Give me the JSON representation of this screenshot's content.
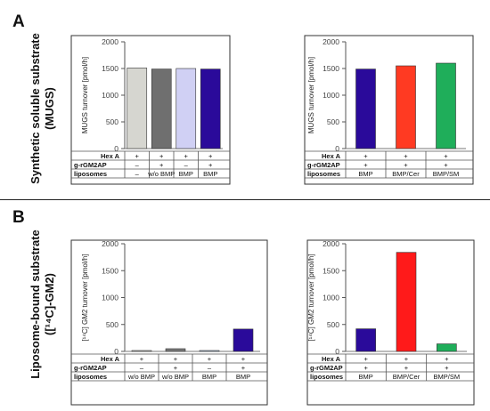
{
  "panels": {
    "a": {
      "letter": "A",
      "side_label_line1": "Synthetic soluble substrate",
      "side_label_line2": "(MUGS)"
    },
    "b": {
      "letter": "B",
      "side_label_line1": "Liposome-bound substrate",
      "side_label_line2": "([¹⁴C]-GM2)"
    }
  },
  "chart_data": [
    {
      "type": "bar",
      "ylabel": "MUGS turnover [pmol/h]",
      "ylim": [
        0,
        2000
      ],
      "yticks": [
        0,
        500,
        1000,
        1500,
        2000
      ],
      "bar_colors": [
        "#d6d6d0",
        "#6f6f6f",
        "#d0d0f4",
        "#2a0a9a"
      ],
      "values": [
        1510,
        1490,
        1500,
        1490
      ],
      "table": {
        "row_labels": [
          "Hex A",
          "g-rGM2AP",
          "liposomes"
        ],
        "rows": [
          [
            "+",
            "+",
            "+",
            "+"
          ],
          [
            "–",
            "+",
            "–",
            "+"
          ],
          [
            "–",
            "w/o BMP",
            "BMP",
            "BMP"
          ]
        ]
      }
    },
    {
      "type": "bar",
      "ylabel": "MUGS turnover [pmol/h]",
      "ylim": [
        0,
        2000
      ],
      "yticks": [
        0,
        500,
        1000,
        1500,
        2000
      ],
      "bar_colors": [
        "#2a0a9a",
        "#ff3a22",
        "#1fae5a"
      ],
      "values": [
        1490,
        1550,
        1600
      ],
      "table": {
        "row_labels": [
          "Hex A",
          "g-rGM2AP",
          "liposomes"
        ],
        "rows": [
          [
            "+",
            "+",
            "+"
          ],
          [
            "+",
            "+",
            "+"
          ],
          [
            "BMP",
            "BMP/Cer",
            "BMP/SM"
          ]
        ]
      }
    },
    {
      "type": "bar",
      "ylabel": "[¹⁴C] GM2 turnover [pmol/h]",
      "ylim": [
        0,
        2000
      ],
      "yticks": [
        0,
        500,
        1000,
        1500,
        2000
      ],
      "bar_colors": [
        "#d6d6d0",
        "#7a7a7a",
        "#b9d8f4",
        "#2a0a9a"
      ],
      "values": [
        5,
        50,
        5,
        415
      ],
      "table": {
        "row_labels": [
          "Hex A",
          "g-rGM2AP",
          "liposomes"
        ],
        "rows": [
          [
            "+",
            "+",
            "+",
            "+"
          ],
          [
            "–",
            "+",
            "–",
            "+"
          ],
          [
            "w/o BMP",
            "w/o BMP",
            "BMP",
            "BMP"
          ]
        ]
      }
    },
    {
      "type": "bar",
      "ylabel": "[¹⁴C] GM2 turnover [pmol/h]",
      "ylim": [
        0,
        2000
      ],
      "yticks": [
        0,
        500,
        1000,
        1500,
        2000
      ],
      "bar_colors": [
        "#2a0a9a",
        "#ff1a1a",
        "#1fae5a"
      ],
      "values": [
        420,
        1840,
        140
      ],
      "table": {
        "row_labels": [
          "Hex A",
          "g-rGM2AP",
          "liposomes"
        ],
        "rows": [
          [
            "+",
            "+",
            "+"
          ],
          [
            "+",
            "+",
            "+"
          ],
          [
            "BMP",
            "BMP/Cer",
            "BMP/SM"
          ]
        ]
      }
    }
  ]
}
